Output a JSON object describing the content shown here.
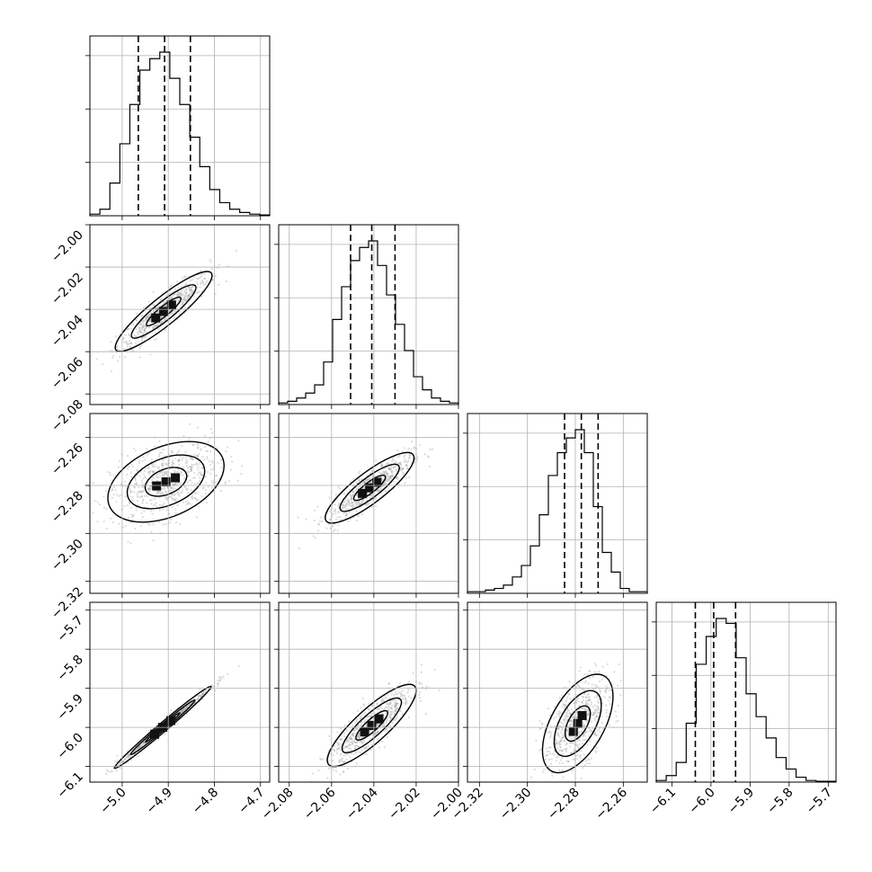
{
  "chart_data": {
    "type": "corner",
    "parameters": [
      {
        "index": 0,
        "range": [
          -5.07,
          -4.68
        ],
        "ticks": [
          -5.0,
          -4.9,
          -4.8,
          -4.7
        ],
        "tick_labels": [
          "−5.0",
          "−4.9",
          "−4.8",
          "−4.7"
        ],
        "quantiles": [
          -4.965,
          -4.908,
          -4.852
        ],
        "histogram": [
          0.01,
          0.04,
          0.2,
          0.44,
          0.68,
          0.89,
          0.96,
          1.0,
          0.84,
          0.68,
          0.48,
          0.3,
          0.16,
          0.08,
          0.04,
          0.02,
          0.01,
          0.005
        ]
      },
      {
        "index": 1,
        "range": [
          -2.085,
          -2.0
        ],
        "ticks": [
          -2.08,
          -2.06,
          -2.04,
          -2.02,
          -2.0
        ],
        "tick_labels": [
          "−2.08",
          "−2.06",
          "−2.04",
          "−2.02",
          "−2.00"
        ],
        "quantiles": [
          -2.051,
          -2.041,
          -2.03
        ],
        "histogram": [
          0.01,
          0.02,
          0.04,
          0.07,
          0.12,
          0.26,
          0.52,
          0.72,
          0.88,
          0.96,
          1.0,
          0.85,
          0.67,
          0.49,
          0.33,
          0.17,
          0.09,
          0.04,
          0.02,
          0.01
        ]
      },
      {
        "index": 2,
        "range": [
          -2.325,
          -2.25
        ],
        "ticks": [
          -2.32,
          -2.3,
          -2.28,
          -2.26
        ],
        "tick_labels": [
          "−2.32",
          "−2.30",
          "−2.28",
          "−2.26"
        ],
        "quantiles": [
          -2.2845,
          -2.2775,
          -2.2705
        ],
        "histogram": [
          0.01,
          0.01,
          0.02,
          0.03,
          0.05,
          0.1,
          0.17,
          0.29,
          0.48,
          0.72,
          0.86,
          0.95,
          1.0,
          0.86,
          0.53,
          0.25,
          0.13,
          0.03,
          0.01,
          0.01
        ]
      },
      {
        "index": 3,
        "range": [
          -6.14,
          -5.68
        ],
        "ticks": [
          -6.1,
          -6.0,
          -5.9,
          -5.8,
          -5.7
        ],
        "tick_labels": [
          "−6.1",
          "−6.0",
          "−5.9",
          "−5.8",
          "−5.7"
        ],
        "quantiles": [
          -6.04,
          -5.993,
          -5.937
        ],
        "histogram": [
          0.01,
          0.04,
          0.12,
          0.36,
          0.72,
          0.89,
          1.0,
          0.97,
          0.76,
          0.54,
          0.4,
          0.27,
          0.15,
          0.08,
          0.03,
          0.01,
          0.005,
          0.005
        ]
      }
    ],
    "pairs": [
      {
        "x": 0,
        "y": 1,
        "center": [
          -4.91,
          -2.041
        ],
        "tilt": 0.9,
        "spread": [
          0.05,
          0.009
        ]
      },
      {
        "x": 0,
        "y": 2,
        "center": [
          -4.905,
          -2.2785
        ],
        "tilt": 0.4,
        "spread": [
          0.06,
          0.008
        ]
      },
      {
        "x": 1,
        "y": 2,
        "center": [
          -2.042,
          -2.281
        ],
        "tilt": 0.85,
        "spread": [
          0.01,
          0.007
        ]
      },
      {
        "x": 0,
        "y": 3,
        "center": [
          -4.912,
          -6.0
        ],
        "tilt": 0.99,
        "spread": [
          0.05,
          0.05
        ]
      },
      {
        "x": 1,
        "y": 3,
        "center": [
          -2.041,
          -5.995
        ],
        "tilt": 0.85,
        "spread": [
          0.01,
          0.05
        ]
      },
      {
        "x": 2,
        "y": 3,
        "center": [
          -2.279,
          -5.99
        ],
        "tilt": 0.55,
        "spread": [
          0.007,
          0.06
        ]
      }
    ],
    "grid": true,
    "contour_levels": [
      0.12,
      0.4,
      0.7
    ]
  }
}
